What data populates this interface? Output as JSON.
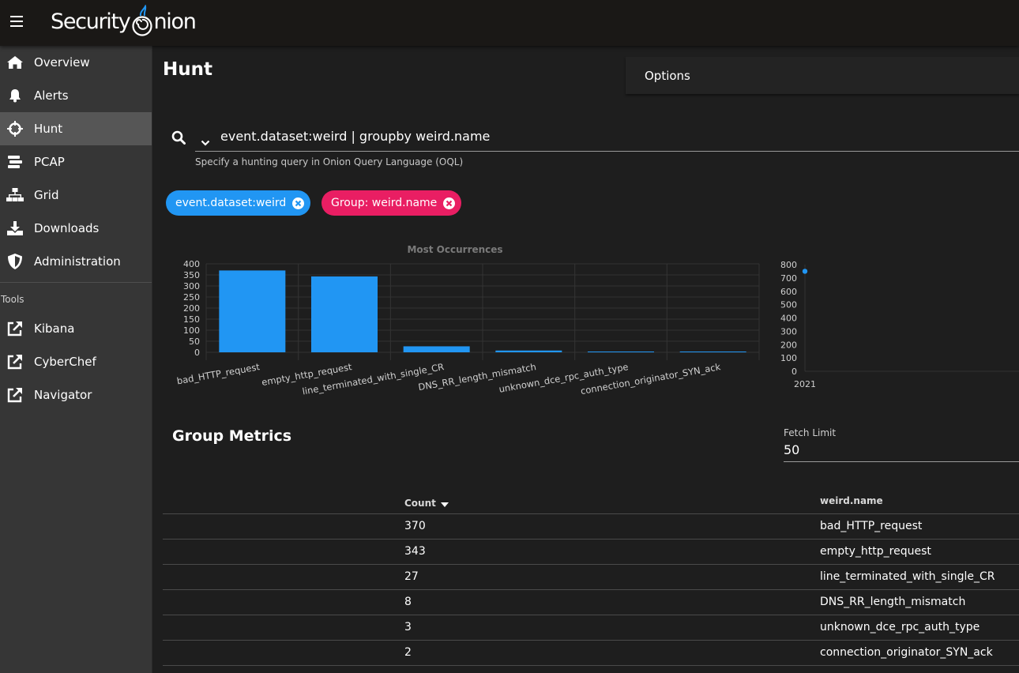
{
  "app": {
    "logo_text": "Security",
    "logo_text_2": "nion"
  },
  "sidebar": {
    "items": [
      {
        "label": "Overview",
        "icon": "home-icon"
      },
      {
        "label": "Alerts",
        "icon": "bell-icon"
      },
      {
        "label": "Hunt",
        "icon": "crosshairs-icon",
        "active": true
      },
      {
        "label": "PCAP",
        "icon": "stream-icon"
      },
      {
        "label": "Grid",
        "icon": "sitemap-icon"
      },
      {
        "label": "Downloads",
        "icon": "download-icon"
      },
      {
        "label": "Administration",
        "icon": "shield-icon"
      }
    ],
    "tools_label": "Tools",
    "tools": [
      {
        "label": "Kibana",
        "icon": "external-link-icon"
      },
      {
        "label": "CyberChef",
        "icon": "external-link-icon"
      },
      {
        "label": "Navigator",
        "icon": "external-link-icon"
      }
    ]
  },
  "main": {
    "title": "Hunt",
    "options_label": "Options",
    "query": "event.dataset:weird | groupby weird.name",
    "query_hint": "Specify a hunting query in Onion Query Language (OQL)",
    "chips": [
      {
        "label": "event.dataset:weird",
        "color": "#2196f3"
      },
      {
        "label": "Group: weird.name",
        "color": "#e91e63"
      }
    ],
    "metrics_title": "Group Metrics",
    "fetch_limit_label": "Fetch Limit",
    "fetch_limit_value": "50",
    "table": {
      "headers": {
        "count": "Count",
        "name": "weird.name"
      },
      "rows": [
        {
          "count": "370",
          "name": "bad_HTTP_request"
        },
        {
          "count": "343",
          "name": "empty_http_request"
        },
        {
          "count": "27",
          "name": "line_terminated_with_single_CR"
        },
        {
          "count": "8",
          "name": "DNS_RR_length_mismatch"
        },
        {
          "count": "3",
          "name": "unknown_dce_rpc_auth_type"
        },
        {
          "count": "2",
          "name": "connection_originator_SYN_ack"
        }
      ]
    }
  },
  "chart_data": [
    {
      "type": "bar",
      "title": "Most Occurrences",
      "categories": [
        "bad_HTTP_request",
        "empty_http_request",
        "line_terminated_with_single_CR",
        "DNS_RR_length_mismatch",
        "unknown_dce_rpc_auth_type",
        "connection_originator_SYN_ack"
      ],
      "values": [
        370,
        343,
        27,
        8,
        3,
        2
      ],
      "ylim": [
        0,
        400
      ],
      "yticks": [
        0,
        50,
        100,
        150,
        200,
        250,
        300,
        350,
        400
      ],
      "grid": true,
      "color": "#2196f3"
    },
    {
      "type": "scatter",
      "x": [
        "2021"
      ],
      "values": [
        750
      ],
      "ylim": [
        0,
        800
      ],
      "yticks": [
        0,
        100,
        200,
        300,
        400,
        500,
        600,
        700,
        800
      ],
      "grid": false,
      "color": "#2196f3"
    }
  ]
}
